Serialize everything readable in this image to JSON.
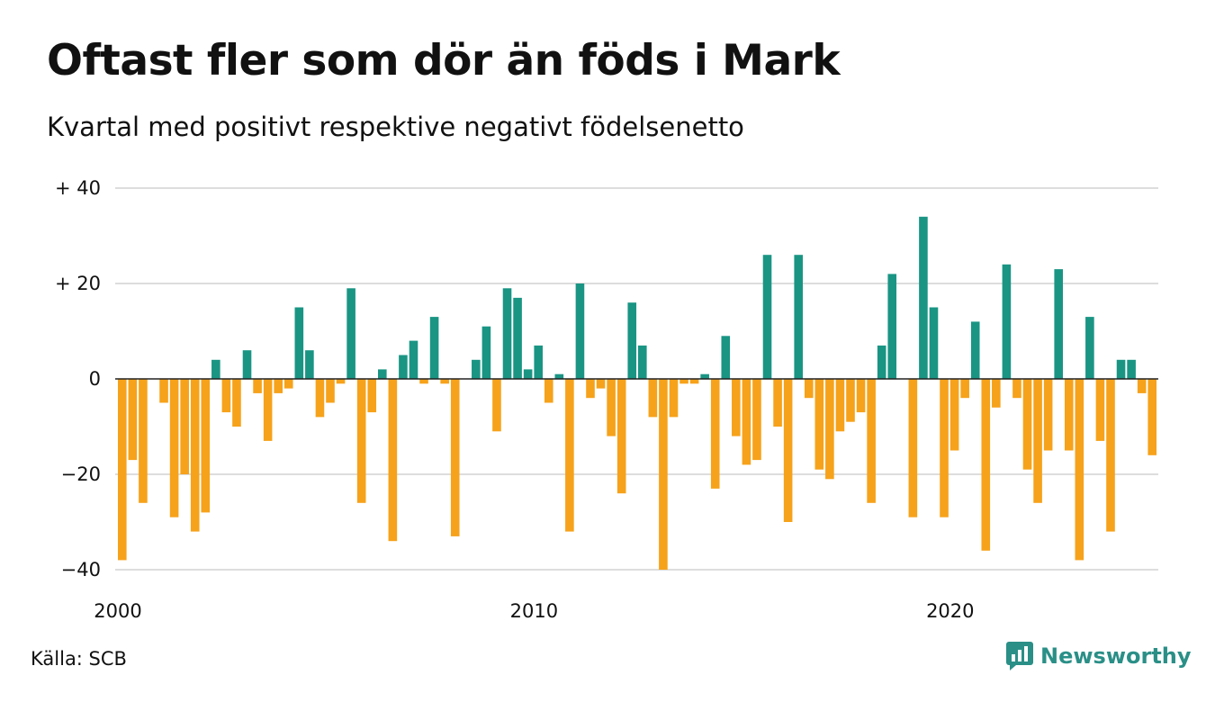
{
  "header": {
    "title": "Oftast fler som dör än föds i Mark",
    "subtitle": "Kvartal med positivt respektive negativt födelsenetto"
  },
  "footer": {
    "source": "Källa: SCB",
    "brand": "Newsworthy",
    "brand_icon": "newsworthy-logo-icon"
  },
  "colors": {
    "positive": "#1a9584",
    "negative": "#f6a21a",
    "grid": "#dddddd",
    "zero_line": "#222222",
    "brand": "#2a8f87"
  },
  "chart_data": {
    "type": "bar",
    "title": "Oftast fler som dör än föds i Mark",
    "subtitle": "Kvartal med positivt respektive negativt födelsenetto",
    "xlabel": "",
    "ylabel": "",
    "ylim": [
      -40,
      40
    ],
    "grid": true,
    "y_ticks": [
      {
        "value": 40,
        "label": "+ 40"
      },
      {
        "value": 20,
        "label": "+ 20"
      },
      {
        "value": 0,
        "label": "0"
      },
      {
        "value": -20,
        "label": "−20"
      },
      {
        "value": -40,
        "label": "−40"
      }
    ],
    "x_ticks": [
      {
        "year": 2000,
        "label": "2000"
      },
      {
        "year": 2010,
        "label": "2010"
      },
      {
        "year": 2020,
        "label": "2020"
      }
    ],
    "x_start": "2000 Q1",
    "period": "quarter",
    "values": [
      -38,
      -17,
      -26,
      0,
      -5,
      -29,
      -20,
      -32,
      -28,
      4,
      -7,
      -10,
      6,
      -3,
      -13,
      -3,
      -2,
      15,
      6,
      -8,
      -5,
      -1,
      19,
      -26,
      -7,
      2,
      -34,
      5,
      8,
      -1,
      13,
      -1,
      -33,
      0,
      4,
      11,
      -11,
      19,
      17,
      2,
      7,
      -5,
      1,
      -32,
      20,
      -4,
      -2,
      -12,
      -24,
      16,
      7,
      -8,
      -40,
      -8,
      -1,
      -1,
      1,
      -23,
      9,
      -12,
      -18,
      -17,
      26,
      -10,
      -30,
      26,
      -4,
      -19,
      -21,
      -11,
      -9,
      -7,
      -26,
      7,
      22,
      0,
      -29,
      34,
      15,
      -29,
      -15,
      -4,
      12,
      -36,
      -6,
      24,
      -4,
      -19,
      -26,
      -15,
      23,
      -15,
      -38,
      13,
      -13,
      -32,
      4,
      4,
      -3,
      -16
    ]
  }
}
